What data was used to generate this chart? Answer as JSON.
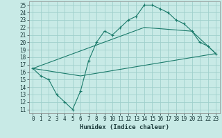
{
  "xlabel": "Humidex (Indice chaleur)",
  "ylabel": "",
  "bg_color": "#c8eae6",
  "grid_color": "#a0d0cc",
  "line_color": "#1a7a6a",
  "xlim": [
    -0.5,
    23.5
  ],
  "ylim": [
    10.5,
    25.5
  ],
  "xticks": [
    0,
    1,
    2,
    3,
    4,
    5,
    6,
    7,
    8,
    9,
    10,
    11,
    12,
    13,
    14,
    15,
    16,
    17,
    18,
    19,
    20,
    21,
    22,
    23
  ],
  "yticks": [
    11,
    12,
    13,
    14,
    15,
    16,
    17,
    18,
    19,
    20,
    21,
    22,
    23,
    24,
    25
  ],
  "line1_x": [
    0,
    1,
    2,
    3,
    4,
    5,
    6,
    7,
    8,
    9,
    10,
    11,
    12,
    13,
    14,
    15,
    16,
    17,
    18,
    19,
    20,
    21,
    22,
    23
  ],
  "line1_y": [
    16.5,
    15.5,
    15.0,
    13.0,
    12.0,
    11.0,
    13.5,
    17.5,
    20.0,
    21.5,
    21.0,
    22.0,
    23.0,
    23.5,
    25.0,
    25.0,
    24.5,
    24.0,
    23.0,
    22.5,
    21.5,
    20.0,
    19.5,
    18.5
  ],
  "line2_x": [
    0,
    6,
    23
  ],
  "line2_y": [
    16.5,
    15.5,
    18.5
  ],
  "line3_x": [
    0,
    14,
    20,
    23
  ],
  "line3_y": [
    16.5,
    22.0,
    21.5,
    18.5
  ]
}
